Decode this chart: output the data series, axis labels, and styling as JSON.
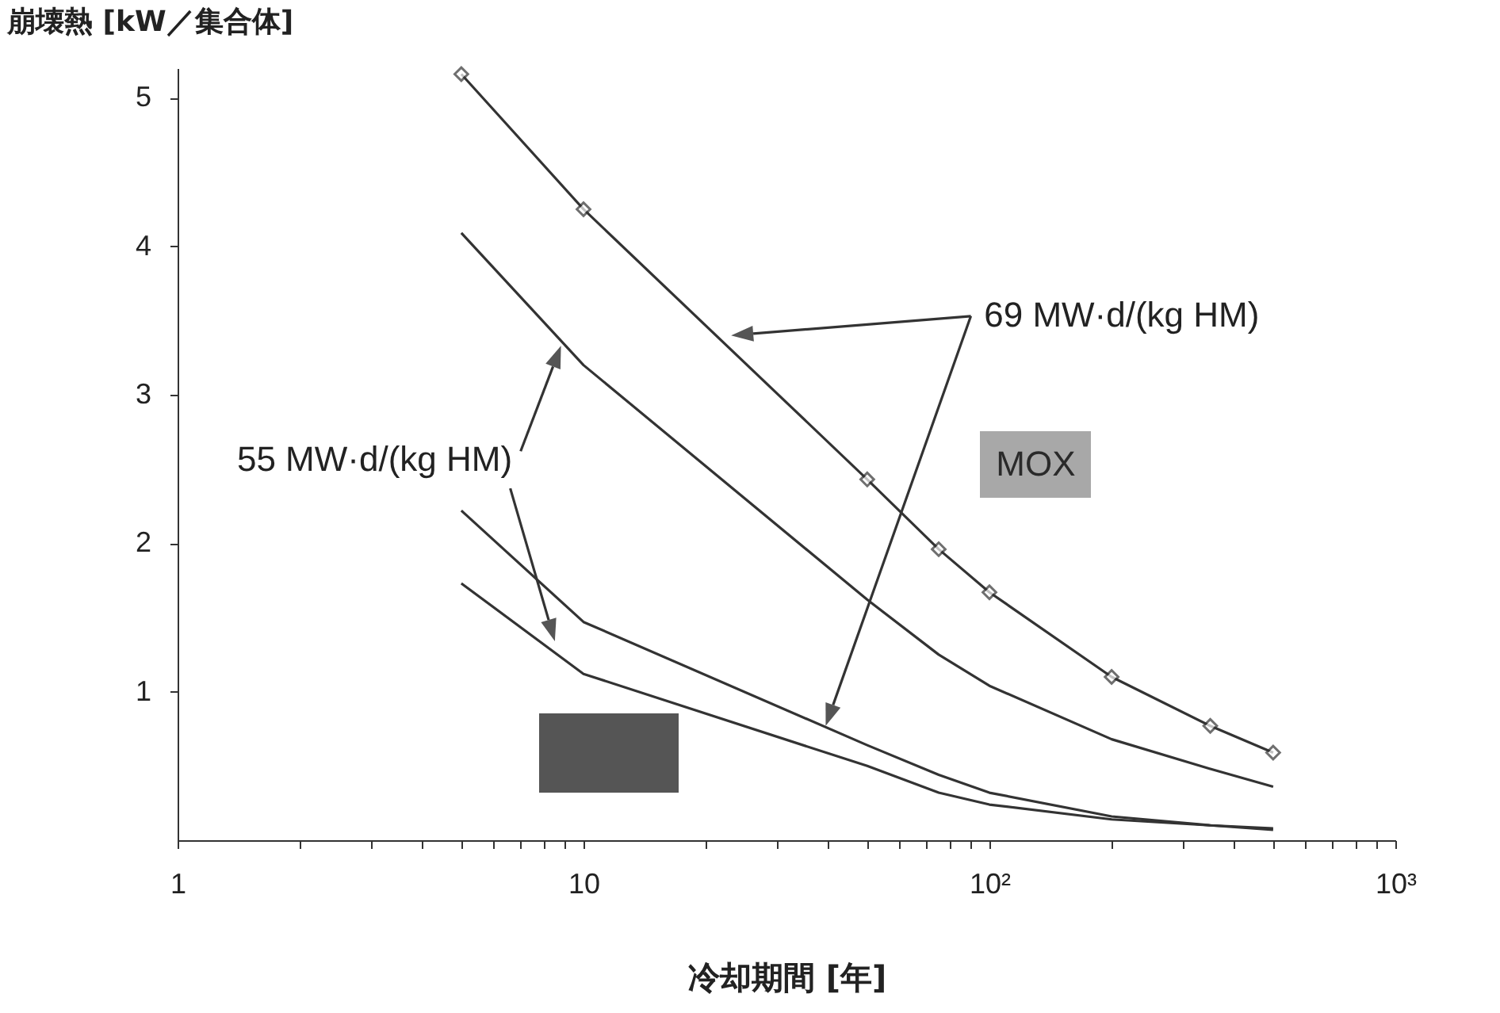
{
  "chart_data": {
    "type": "line",
    "xlabel": "冷却期間 [年]",
    "ylabel": "崩壊熱 [kW／集合体]",
    "log": "x",
    "grid": false,
    "legend": false,
    "xlim": [
      1,
      1000
    ],
    "ylim": [
      0,
      5.2
    ],
    "xticks": [
      1,
      {
        "value": 2,
        "label": null
      },
      {
        "value": 3,
        "label": null
      },
      {
        "value": 4,
        "label": null
      },
      {
        "value": 5,
        "label": null
      },
      {
        "value": 6,
        "label": null
      },
      {
        "value": 7,
        "label": null
      },
      {
        "value": 8,
        "label": null
      },
      {
        "value": 9,
        "label": null
      },
      10,
      {
        "value": 20,
        "label": null
      },
      {
        "value": 30,
        "label": null
      },
      {
        "value": 40,
        "label": null
      },
      {
        "value": 50,
        "label": null
      },
      {
        "value": 60,
        "label": null
      },
      {
        "value": 70,
        "label": null
      },
      {
        "value": 80,
        "label": null
      },
      {
        "value": 90,
        "label": null
      },
      {
        "value": 100,
        "label": "10²"
      },
      {
        "value": 200,
        "label": null
      },
      {
        "value": 300,
        "label": null
      },
      {
        "value": 400,
        "label": null
      },
      {
        "value": 500,
        "label": null
      },
      {
        "value": 600,
        "label": null
      },
      {
        "value": 700,
        "label": null
      },
      {
        "value": 800,
        "label": null
      },
      {
        "value": 900,
        "label": null
      },
      {
        "value": 1000,
        "label": "10³"
      }
    ],
    "yticks": [
      1,
      2,
      3,
      4,
      5
    ],
    "x": [
      5,
      10,
      50,
      75,
      100,
      200,
      350,
      500
    ],
    "series": [
      {
        "color": "#333333",
        "marker": "diamond",
        "values": [
          5.16,
          4.25,
          2.43,
          1.96,
          1.67,
          1.1,
          0.77,
          0.59
        ]
      },
      {
        "color": "#333333",
        "marker": "none",
        "values": [
          4.09,
          3.2,
          1.62,
          1.25,
          1.04,
          0.68,
          0.48,
          0.36
        ]
      },
      {
        "color": "#333333",
        "marker": "none",
        "values": [
          2.22,
          1.47,
          0.64,
          0.44,
          0.32,
          0.16,
          0.1,
          0.08
        ]
      },
      {
        "color": "#333333",
        "marker": "none",
        "values": [
          1.73,
          1.12,
          0.5,
          0.32,
          0.24,
          0.14,
          0.1,
          0.07
        ]
      }
    ],
    "annotations": [
      "69 MW·d/(kg HM)",
      "55 MW·d/(kg HM)",
      "MOX"
    ]
  }
}
